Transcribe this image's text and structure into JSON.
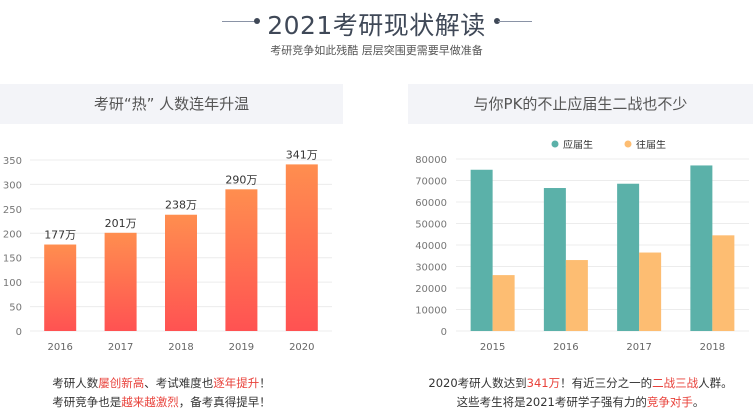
{
  "header": {
    "title": "2021考研现状解读",
    "subtitle": "考研竞争如此残酷 层层突围更需要早做准备"
  },
  "colors": {
    "bar_top": "#ff8e4f",
    "bar_bottom": "#ff5252",
    "current": "#5bb1a9",
    "past": "#fdbd72",
    "highlight": "#e8413a"
  },
  "left_panel": {
    "title": "考研“热” 人数连年升温",
    "caption": {
      "line1": [
        "考研人数",
        "屡创新高",
        "、考试难度也",
        "逐年提升",
        "！"
      ],
      "line2": [
        "考研竞争也是",
        "越来越激烈",
        "，备考真得提早！"
      ]
    }
  },
  "right_panel": {
    "title": "与你PK的不止应届生二战也不少",
    "caption": {
      "line1": [
        "2020考研人数达到",
        "341万",
        "！有近三分之一的",
        "二战三战",
        "人群。"
      ],
      "line2": [
        "这些考生将是2021考研学子强有力的",
        "竞争对手",
        "。"
      ]
    }
  },
  "chart_data": [
    {
      "type": "bar",
      "title": "考研“热” 人数连年升温",
      "categories": [
        "2016",
        "2017",
        "2018",
        "2019",
        "2020"
      ],
      "values": [
        177,
        201,
        238,
        290,
        341
      ],
      "data_labels": [
        "177万",
        "201万",
        "238万",
        "290万",
        "341万"
      ],
      "ylim": [
        0,
        350
      ],
      "yticks": [
        "0",
        "50",
        "100",
        "150",
        "200",
        "250",
        "300",
        "350"
      ],
      "grid": true
    },
    {
      "type": "bar",
      "title": "与你PK的不止应届生二战也不少",
      "categories": [
        "2015",
        "2016",
        "2017",
        "2018"
      ],
      "series": [
        {
          "name": "应届生",
          "values": [
            75000,
            66500,
            68500,
            77000
          ]
        },
        {
          "name": "往届生",
          "values": [
            26000,
            33000,
            36500,
            44500
          ]
        }
      ],
      "ylim": [
        0,
        80000
      ],
      "yticks": [
        "0",
        "10000",
        "20000",
        "30000",
        "40000",
        "50000",
        "60000",
        "70000",
        "80000"
      ],
      "legend": "top-center",
      "grid": true
    }
  ]
}
